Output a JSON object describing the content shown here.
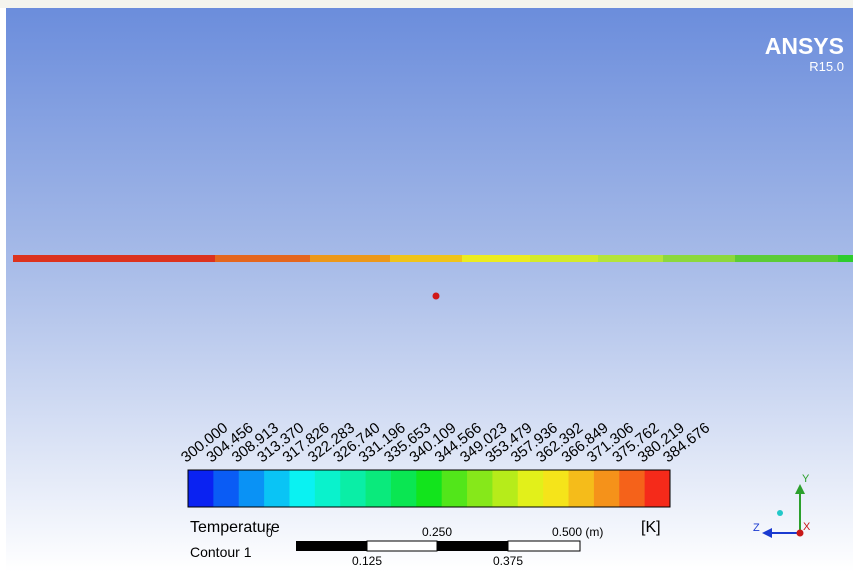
{
  "brand": {
    "name": "ANSYS",
    "version": "R15.0"
  },
  "legend": {
    "title": "Temperature",
    "unit": "[K]",
    "name": "Contour 1",
    "labels": [
      "300.000",
      "304.456",
      "308.913",
      "313.370",
      "317.826",
      "322.283",
      "326.740",
      "331.196",
      "335.653",
      "340.109",
      "344.566",
      "349.023",
      "353.479",
      "357.936",
      "362.392",
      "366.849",
      "371.306",
      "375.762",
      "380.219",
      "384.676"
    ],
    "colors": [
      "#0a22f2",
      "#0a5cf5",
      "#0a92f5",
      "#0ac4f5",
      "#0af2f2",
      "#0af2cc",
      "#0aeea6",
      "#0aea7c",
      "#0ae652",
      "#12e41c",
      "#52e61a",
      "#86e81a",
      "#b6ec1a",
      "#e2f01a",
      "#f5e41a",
      "#f5bc1a",
      "#f5921a",
      "#f5621a",
      "#f52a1a"
    ]
  },
  "scale": {
    "start": "0",
    "mid": "0.250",
    "end": "0.500 (m)",
    "quarter": "0.125",
    "three_quarter": "0.375"
  },
  "triad": {
    "y": "Y",
    "z": "Z",
    "x": "X"
  }
}
